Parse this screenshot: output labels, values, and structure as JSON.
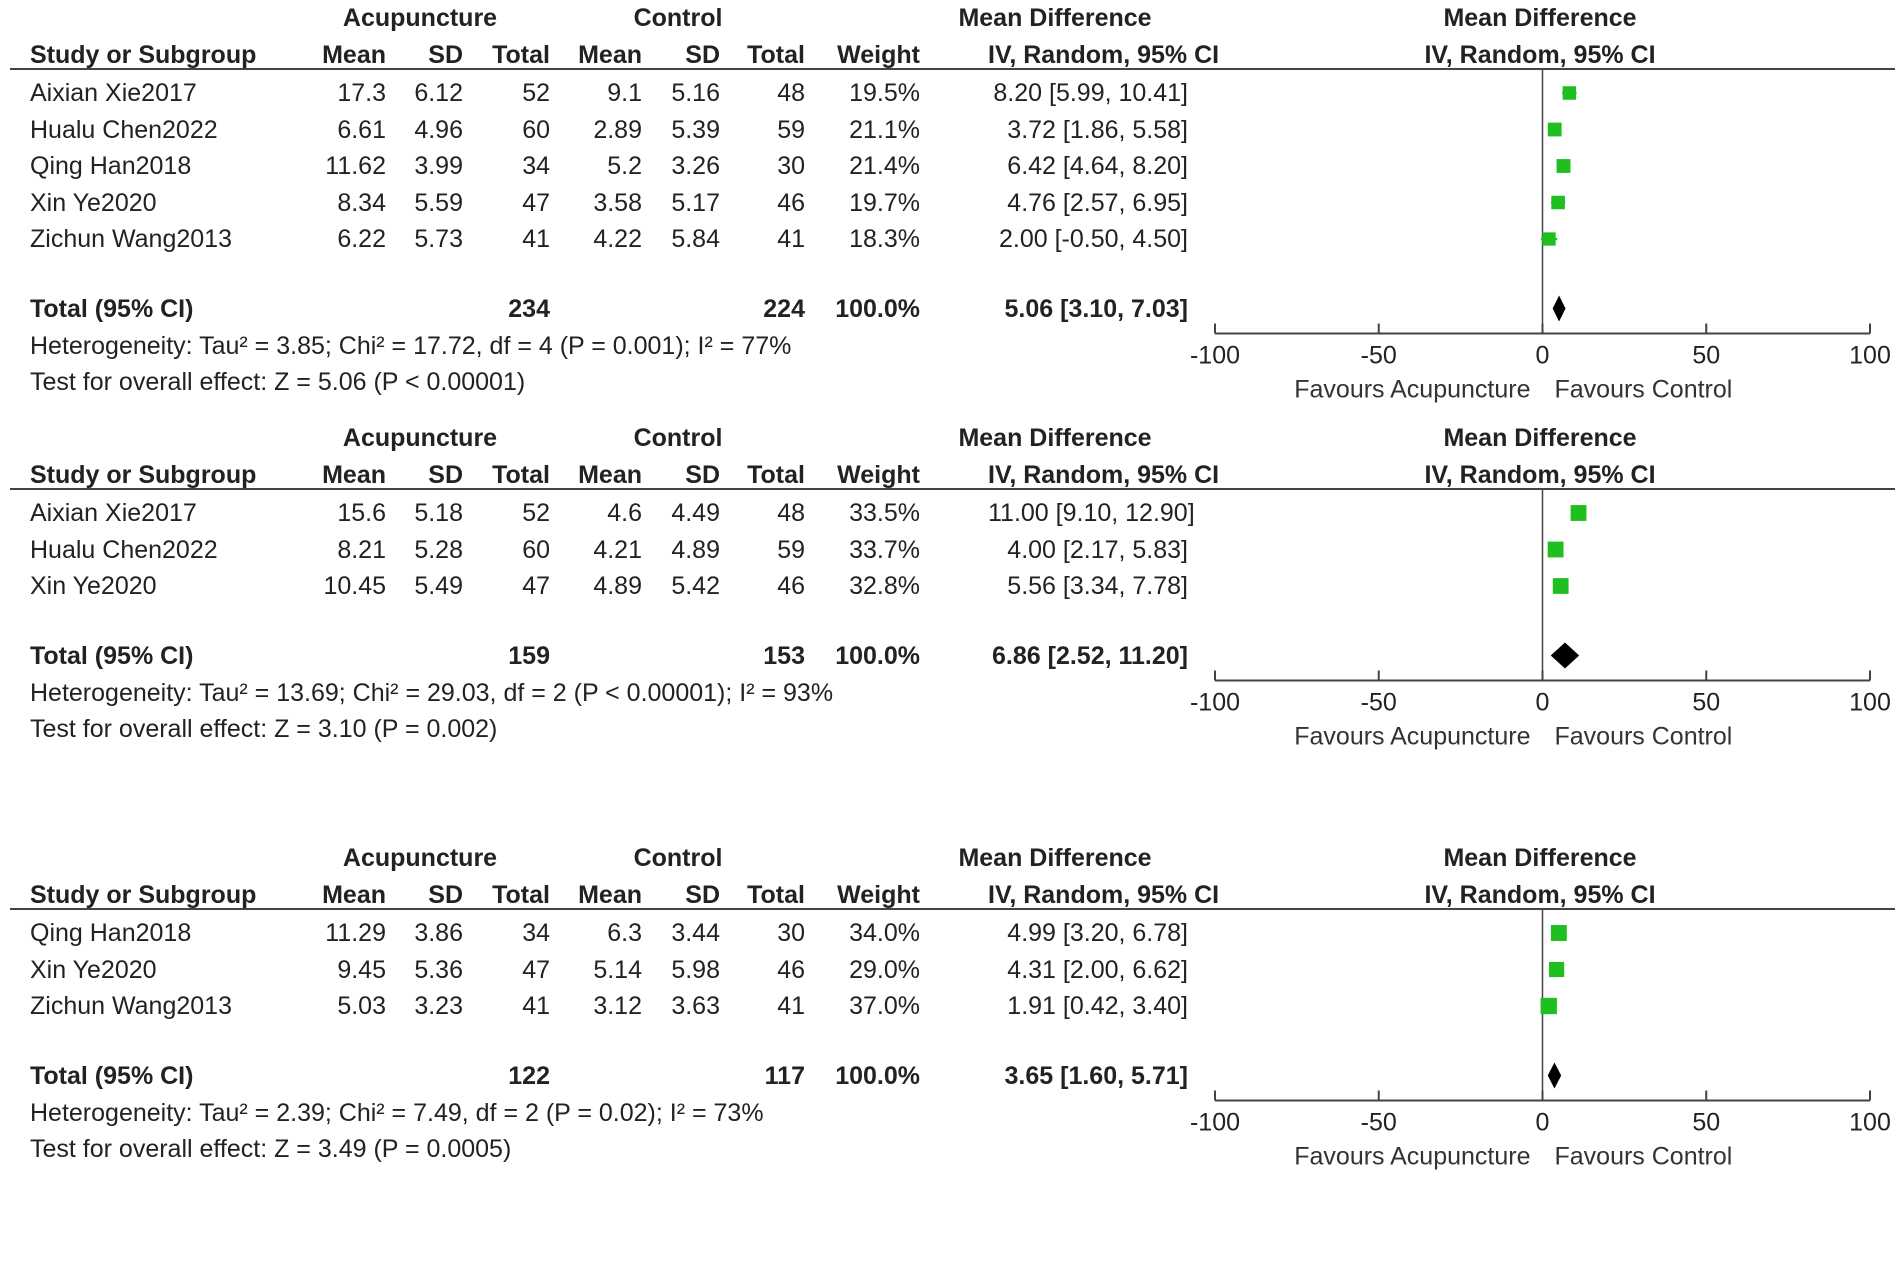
{
  "headers": {
    "acupuncture": "Acupuncture",
    "control": "Control",
    "mean_difference": "Mean Difference",
    "study": "Study or Subgroup",
    "mean": "Mean",
    "sd": "SD",
    "total": "Total",
    "weight": "Weight",
    "method": "IV, Random, 95% CI"
  },
  "panels": [
    {
      "studies": [
        {
          "name": "Aixian Xie2017",
          "a_mean": "17.3",
          "a_sd": "6.12",
          "a_total": "52",
          "c_mean": "9.1",
          "c_sd": "5.16",
          "c_total": "48",
          "weight": "19.5%",
          "ci": "8.20 [5.99, 10.41]"
        },
        {
          "name": "Hualu Chen2022",
          "a_mean": "6.61",
          "a_sd": "4.96",
          "a_total": "60",
          "c_mean": "2.89",
          "c_sd": "5.39",
          "c_total": "59",
          "weight": "21.1%",
          "ci": "3.72 [1.86, 5.58]"
        },
        {
          "name": "Qing Han2018",
          "a_mean": "11.62",
          "a_sd": "3.99",
          "a_total": "34",
          "c_mean": "5.2",
          "c_sd": "3.26",
          "c_total": "30",
          "weight": "21.4%",
          "ci": "6.42 [4.64, 8.20]"
        },
        {
          "name": "Xin Ye2020",
          "a_mean": "8.34",
          "a_sd": "5.59",
          "a_total": "47",
          "c_mean": "3.58",
          "c_sd": "5.17",
          "c_total": "46",
          "weight": "19.7%",
          "ci": "4.76 [2.57, 6.95]"
        },
        {
          "name": "Zichun Wang2013",
          "a_mean": "6.22",
          "a_sd": "5.73",
          "a_total": "41",
          "c_mean": "4.22",
          "c_sd": "5.84",
          "c_total": "41",
          "weight": "18.3%",
          "ci": "2.00 [-0.50, 4.50]"
        }
      ],
      "total": {
        "label": "Total (95% CI)",
        "a_total": "234",
        "c_total": "224",
        "weight": "100.0%",
        "ci": "5.06 [3.10, 7.03]"
      },
      "heterogeneity": "Heterogeneity: Tau² = 3.85; Chi² = 17.72, df = 4 (P = 0.001); I² = 77%",
      "overall": "Test for overall effect: Z = 5.06 (P < 0.00001)"
    },
    {
      "studies": [
        {
          "name": "Aixian Xie2017",
          "a_mean": "15.6",
          "a_sd": "5.18",
          "a_total": "52",
          "c_mean": "4.6",
          "c_sd": "4.49",
          "c_total": "48",
          "weight": "33.5%",
          "ci": "11.00 [9.10, 12.90]"
        },
        {
          "name": "Hualu Chen2022",
          "a_mean": "8.21",
          "a_sd": "5.28",
          "a_total": "60",
          "c_mean": "4.21",
          "c_sd": "4.89",
          "c_total": "59",
          "weight": "33.7%",
          "ci": "4.00 [2.17, 5.83]"
        },
        {
          "name": "Xin Ye2020",
          "a_mean": "10.45",
          "a_sd": "5.49",
          "a_total": "47",
          "c_mean": "4.89",
          "c_sd": "5.42",
          "c_total": "46",
          "weight": "32.8%",
          "ci": "5.56 [3.34, 7.78]"
        }
      ],
      "total": {
        "label": "Total (95% CI)",
        "a_total": "159",
        "c_total": "153",
        "weight": "100.0%",
        "ci": "6.86 [2.52, 11.20]"
      },
      "heterogeneity": "Heterogeneity: Tau² = 13.69; Chi² = 29.03, df = 2 (P < 0.00001); I² = 93%",
      "overall": "Test for overall effect: Z = 3.10 (P = 0.002)"
    },
    {
      "studies": [
        {
          "name": "Qing Han2018",
          "a_mean": "11.29",
          "a_sd": "3.86",
          "a_total": "34",
          "c_mean": "6.3",
          "c_sd": "3.44",
          "c_total": "30",
          "weight": "34.0%",
          "ci": "4.99 [3.20, 6.78]"
        },
        {
          "name": "Xin Ye2020",
          "a_mean": "9.45",
          "a_sd": "5.36",
          "a_total": "47",
          "c_mean": "5.14",
          "c_sd": "5.98",
          "c_total": "46",
          "weight": "29.0%",
          "ci": "4.31 [2.00, 6.62]"
        },
        {
          "name": "Zichun Wang2013",
          "a_mean": "5.03",
          "a_sd": "3.23",
          "a_total": "41",
          "c_mean": "3.12",
          "c_sd": "3.63",
          "c_total": "41",
          "weight": "37.0%",
          "ci": "1.91 [0.42, 3.40]"
        }
      ],
      "total": {
        "label": "Total (95% CI)",
        "a_total": "122",
        "c_total": "117",
        "weight": "100.0%",
        "ci": "3.65 [1.60, 5.71]"
      },
      "heterogeneity": "Heterogeneity: Tau² = 2.39; Chi² = 7.49, df = 2 (P = 0.02); I² = 73%",
      "overall": "Test for overall effect: Z = 3.49 (P = 0.0005)"
    }
  ],
  "colors": {
    "study_marker": "#1fbf1f",
    "diamond": "#000000",
    "axis": "#444444"
  },
  "chart_data": [
    {
      "type": "forest",
      "title": "Mean Difference IV, Random, 95% CI",
      "studies": [
        "Aixian Xie2017",
        "Hualu Chen2022",
        "Qing Han2018",
        "Xin Ye2020",
        "Zichun Wang2013"
      ],
      "md": [
        8.2,
        3.72,
        6.42,
        4.76,
        2.0
      ],
      "ci_low": [
        5.99,
        1.86,
        4.64,
        2.57,
        -0.5
      ],
      "ci_high": [
        10.41,
        5.58,
        8.2,
        6.95,
        4.5
      ],
      "weights": [
        19.5,
        21.1,
        21.4,
        19.7,
        18.3
      ],
      "pooled": {
        "md": 5.06,
        "ci_low": 3.1,
        "ci_high": 7.03
      },
      "xlim": [
        -100,
        100
      ],
      "ticks": [
        -100,
        -50,
        0,
        50,
        100
      ],
      "tick_labels": [
        "-100",
        "-50",
        "0",
        "50",
        "100"
      ],
      "left_label": "Favours Acupuncture",
      "right_label": "Favours Control"
    },
    {
      "type": "forest",
      "title": "Mean Difference IV, Random, 95% CI",
      "studies": [
        "Aixian Xie2017",
        "Hualu Chen2022",
        "Xin Ye2020"
      ],
      "md": [
        11.0,
        4.0,
        5.56
      ],
      "ci_low": [
        9.1,
        2.17,
        3.34
      ],
      "ci_high": [
        12.9,
        5.83,
        7.78
      ],
      "weights": [
        33.5,
        33.7,
        32.8
      ],
      "pooled": {
        "md": 6.86,
        "ci_low": 2.52,
        "ci_high": 11.2
      },
      "xlim": [
        -100,
        100
      ],
      "ticks": [
        -100,
        -50,
        0,
        50,
        100
      ],
      "tick_labels": [
        "-100",
        "-50",
        "0",
        "50",
        "100"
      ],
      "left_label": "Favours Acupuncture",
      "right_label": "Favours Control"
    },
    {
      "type": "forest",
      "title": "Mean Difference IV, Random, 95% CI",
      "studies": [
        "Qing Han2018",
        "Xin Ye2020",
        "Zichun Wang2013"
      ],
      "md": [
        4.99,
        4.31,
        1.91
      ],
      "ci_low": [
        3.2,
        2.0,
        0.42
      ],
      "ci_high": [
        6.78,
        6.62,
        3.4
      ],
      "weights": [
        34.0,
        29.0,
        37.0
      ],
      "pooled": {
        "md": 3.65,
        "ci_low": 1.6,
        "ci_high": 5.71
      },
      "xlim": [
        -100,
        100
      ],
      "ticks": [
        -100,
        -50,
        0,
        50,
        100
      ],
      "tick_labels": [
        "-100",
        "-50",
        "0",
        "50",
        "100"
      ],
      "left_label": "Favours Acupuncture",
      "right_label": "Favours Control"
    }
  ]
}
